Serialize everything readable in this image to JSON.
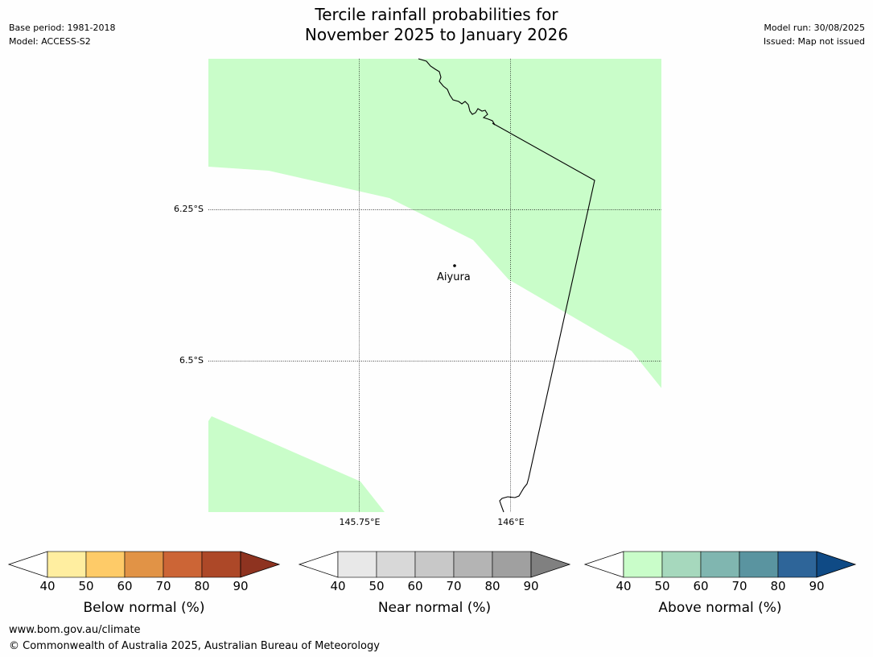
{
  "header": {
    "base_period": "Base period: 1981-2018",
    "model": "Model: ACCESS-S2",
    "model_run": "Model run: 30/08/2025",
    "issued": "Issued: Map not issued",
    "title_line1": "Tercile rainfall probabilities for",
    "title_line2": "November 2025 to January 2026"
  },
  "map": {
    "latitude_labels": [
      "6.25°S",
      "6.5°S"
    ],
    "longitude_labels": [
      "145.75°E",
      "146°E"
    ],
    "town": "Aiyura",
    "shade_color": "#c9fdc9",
    "shade_category": "Above normal 40-50%"
  },
  "colorbars": [
    {
      "label": "Below normal (%)",
      "ticks": [
        "40",
        "50",
        "60",
        "70",
        "80",
        "90"
      ],
      "colors": [
        "#ffeea0",
        "#fecb68",
        "#e19346",
        "#cc6536",
        "#ad4828"
      ],
      "extend_low": "#ffffff",
      "extend_high": "#8e3320"
    },
    {
      "label": "Near normal (%)",
      "ticks": [
        "40",
        "50",
        "60",
        "70",
        "80",
        "90"
      ],
      "colors": [
        "#e8e8e8",
        "#d8d8d8",
        "#c8c8c8",
        "#b4b4b4",
        "#a0a0a0"
      ],
      "extend_low": "#ffffff",
      "extend_high": "#808080"
    },
    {
      "label": "Above normal (%)",
      "ticks": [
        "40",
        "50",
        "60",
        "70",
        "80",
        "90"
      ],
      "colors": [
        "#c9fdc9",
        "#a6d8bd",
        "#80b6b0",
        "#5a94a0",
        "#2e6599"
      ],
      "extend_low": "#ffffff",
      "extend_high": "#0f4a85"
    }
  ],
  "footer": {
    "url": "www.bom.gov.au/climate",
    "copyright": "© Commonwealth of Australia 2025, Australian Bureau of Meteorology"
  }
}
